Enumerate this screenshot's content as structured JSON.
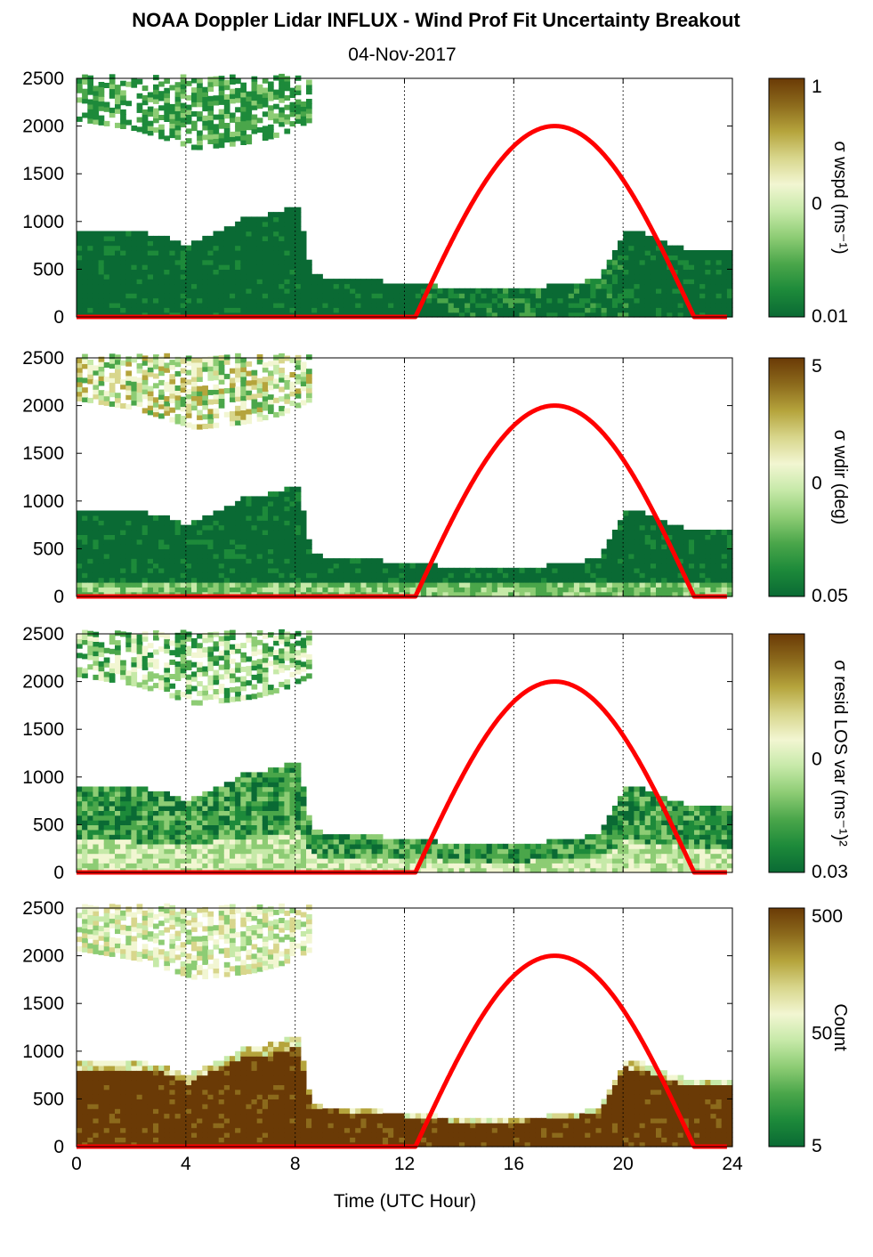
{
  "figure": {
    "title": "NOAA Doppler Lidar INFLUX - Wind Prof Fit Uncertainty Breakout",
    "date": "04-Nov-2017",
    "xlabel": "Time (UTC Hour)"
  },
  "colors": {
    "curve": "#ff0000",
    "colormap": [
      "#0a6a34",
      "#1d8a3a",
      "#4aa64a",
      "#8dcc74",
      "#c6e9a8",
      "#f2f6d2",
      "#d8d68c",
      "#b5a43c",
      "#8c6a1c",
      "#6a3a06"
    ]
  },
  "chart_data": [
    {
      "type": "heatmap",
      "panel": "wspd",
      "colorbar_label": "σ wspd (ms⁻¹)",
      "colorbar_ticks": [
        "1",
        "0",
        "0.01"
      ],
      "x_range": [
        0,
        24
      ],
      "y_range": [
        0,
        2500
      ],
      "x_ticks": [
        0,
        4,
        8,
        12,
        16,
        20,
        24
      ],
      "y_ticks": [
        0,
        500,
        1000,
        1500,
        2000,
        2500
      ],
      "style": "lowdominant",
      "overlay_curve": "solar"
    },
    {
      "type": "heatmap",
      "panel": "wdir",
      "colorbar_label": "σ wdir (deg)",
      "colorbar_ticks": [
        "5",
        "0",
        "0.05"
      ],
      "x_range": [
        0,
        24
      ],
      "y_range": [
        0,
        2500
      ],
      "x_ticks": [
        0,
        4,
        8,
        12,
        16,
        20,
        24
      ],
      "y_ticks": [
        0,
        500,
        1000,
        1500,
        2000,
        2500
      ],
      "style": "mixed",
      "overlay_curve": "solar"
    },
    {
      "type": "heatmap",
      "panel": "resid",
      "colorbar_label": "σ resid LOS var (ms⁻¹)²",
      "colorbar_ticks": [
        "",
        "0",
        "0.03"
      ],
      "x_range": [
        0,
        24
      ],
      "y_range": [
        0,
        2500
      ],
      "x_ticks": [
        0,
        4,
        8,
        12,
        16,
        20,
        24
      ],
      "y_ticks": [
        0,
        500,
        1000,
        1500,
        2000,
        2500
      ],
      "style": "resid",
      "overlay_curve": "solar"
    },
    {
      "type": "heatmap",
      "panel": "count",
      "colorbar_label": "Count",
      "colorbar_ticks": [
        "500",
        "50",
        "5"
      ],
      "x_range": [
        0,
        24
      ],
      "y_range": [
        0,
        2500
      ],
      "x_ticks": [
        0,
        4,
        8,
        12,
        16,
        20,
        24
      ],
      "y_ticks": [
        0,
        500,
        1000,
        1500,
        2000,
        2500
      ],
      "style": "count",
      "overlay_curve": "solar"
    }
  ],
  "solar_curve": {
    "rise_hour": 12.4,
    "peak_hour": 17.5,
    "set_hour": 22.6,
    "peak_value": 2000,
    "end_hour": 23.8
  },
  "data_envelope": {
    "upper_layer": {
      "x_start": 0,
      "x_end": 8.5,
      "base": [
        2050,
        2000,
        1950,
        1850,
        1750,
        1780,
        1820,
        1900,
        2050
      ],
      "top": 2500
    },
    "boundary_layer_top": {
      "hours": [
        0,
        1,
        2,
        3,
        3.5,
        4,
        5,
        6,
        7,
        8,
        8.5,
        9,
        10,
        11,
        12,
        13,
        14,
        15,
        16,
        17,
        18,
        19,
        20,
        21,
        22,
        23,
        23.8
      ],
      "heights": [
        880,
        860,
        860,
        840,
        780,
        720,
        870,
        1000,
        1050,
        1150,
        450,
        400,
        380,
        350,
        330,
        300,
        260,
        250,
        270,
        300,
        320,
        380,
        900,
        820,
        700,
        680,
        680
      ]
    }
  }
}
